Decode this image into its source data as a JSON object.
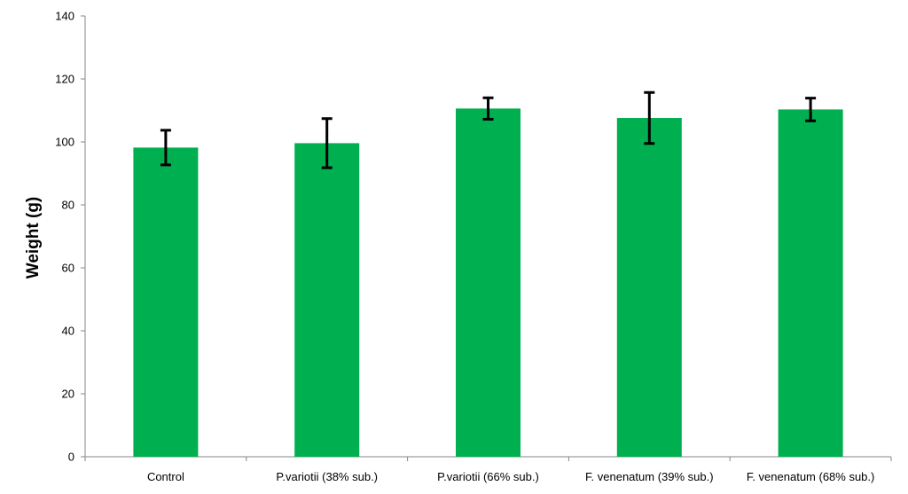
{
  "chart_data": {
    "type": "bar",
    "title": "",
    "xlabel": "",
    "ylabel": "Weight (g)",
    "ylim": [
      0,
      140
    ],
    "yticks": [
      0,
      20,
      40,
      60,
      80,
      100,
      120,
      140
    ],
    "categories": [
      "Control",
      "P.variotii (38% sub.)",
      "P.variotii (66% sub.)",
      "F. venenatum (39% sub.)",
      "F. venenatum (68% sub.)"
    ],
    "values": [
      98.2,
      99.6,
      110.6,
      107.6,
      110.3
    ],
    "errors": [
      5.5,
      7.8,
      3.4,
      8.1,
      3.6
    ],
    "grid": false,
    "bar_color": "#00b050",
    "error_bar_color": "#000000"
  }
}
